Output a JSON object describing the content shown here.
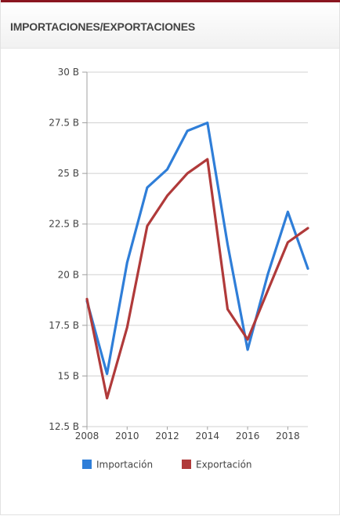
{
  "panel": {
    "title": "IMPORTACIONES/EXPORTACIONES"
  },
  "chart_data": {
    "type": "line",
    "title": "",
    "xlabel": "",
    "ylabel": "",
    "x": [
      2008,
      2009,
      2010,
      2011,
      2012,
      2013,
      2014,
      2015,
      2016,
      2017,
      2018,
      2019
    ],
    "xlim": [
      2008,
      2019
    ],
    "ylim": [
      12.5,
      30
    ],
    "x_ticks": [
      "2008",
      "2010",
      "2012",
      "2014",
      "2016",
      "2018"
    ],
    "y_ticks": [
      {
        "value": 30,
        "label": "30 B"
      },
      {
        "value": 27.5,
        "label": "27.5 B"
      },
      {
        "value": 25,
        "label": "25 B"
      },
      {
        "value": 22.5,
        "label": "22.5 B"
      },
      {
        "value": 20,
        "label": "20 B"
      },
      {
        "value": 17.5,
        "label": "17.5 B"
      },
      {
        "value": 15,
        "label": "15 B"
      },
      {
        "value": 12.5,
        "label": "12.5 B"
      }
    ],
    "grid": "horizontal",
    "legend_position": "bottom",
    "series": [
      {
        "name": "Importación",
        "color": "#2f7ed8",
        "values": [
          18.7,
          15.1,
          20.6,
          24.3,
          25.2,
          27.1,
          27.5,
          21.5,
          16.3,
          20.0,
          23.1,
          20.3
        ]
      },
      {
        "name": "Exportación",
        "color": "#b03a3a",
        "values": [
          18.8,
          13.9,
          17.4,
          22.4,
          23.9,
          25.0,
          25.7,
          18.3,
          16.8,
          19.2,
          21.6,
          22.3
        ]
      }
    ]
  }
}
